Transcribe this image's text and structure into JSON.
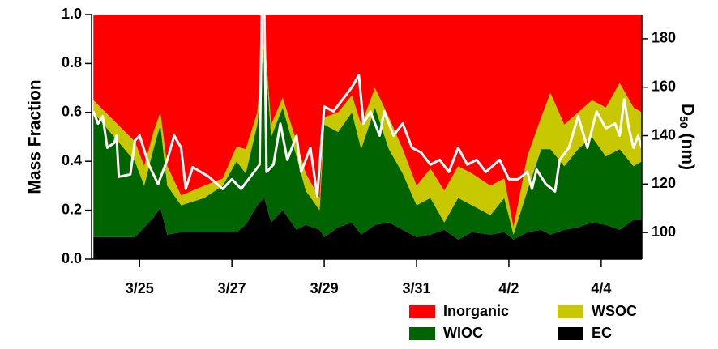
{
  "chart_data": {
    "type": "stacked-area",
    "y_label": "Mass Fraction",
    "y2_label": [
      "D",
      "50",
      " (nm)"
    ],
    "x": [
      0,
      0.9,
      1.1,
      1.3,
      1.45,
      1.6,
      1.9,
      2.4,
      2.8,
      3.1,
      3.3,
      3.55,
      3.7,
      3.85,
      4.1,
      4.4,
      4.6,
      4.9,
      5.0,
      5.3,
      5.6,
      5.8,
      6.1,
      6.4,
      6.7,
      7.0,
      7.3,
      7.6,
      7.9,
      8.2,
      8.6,
      8.9,
      9.1,
      9.4,
      9.7,
      9.9,
      10.2,
      10.5,
      10.8,
      11.1,
      11.4,
      11.7,
      11.88
    ],
    "xlim": [
      -0.04,
      11.88
    ],
    "xticks": [
      {
        "value": 1,
        "label": "3/25"
      },
      {
        "value": 3,
        "label": "3/27"
      },
      {
        "value": 5,
        "label": "3/29"
      },
      {
        "value": 7,
        "label": "3/31"
      },
      {
        "value": 9,
        "label": "4/2"
      },
      {
        "value": 11,
        "label": "4/4"
      }
    ],
    "ylim": [
      0,
      1
    ],
    "yticks": [
      {
        "value": 0,
        "label": "0.0"
      },
      0.2,
      0.4,
      0.6,
      0.8,
      {
        "value": 1,
        "label": "1.0"
      }
    ],
    "y2lim": [
      89,
      190
    ],
    "y2ticks": [
      100,
      120,
      140,
      160,
      180
    ],
    "series": [
      {
        "name": "EC",
        "color": "#000000",
        "values": [
          0.09,
          0.09,
          0.13,
          0.17,
          0.21,
          0.1,
          0.11,
          0.11,
          0.11,
          0.11,
          0.14,
          0.22,
          0.25,
          0.15,
          0.2,
          0.12,
          0.14,
          0.12,
          0.09,
          0.13,
          0.15,
          0.1,
          0.14,
          0.15,
          0.12,
          0.09,
          0.1,
          0.12,
          0.08,
          0.11,
          0.1,
          0.11,
          0.08,
          0.11,
          0.12,
          0.1,
          0.12,
          0.13,
          0.15,
          0.14,
          0.12,
          0.16,
          0.16
        ]
      },
      {
        "name": "WIOC",
        "color": "#006400",
        "values": [
          0.51,
          0.31,
          0.17,
          0.28,
          0.34,
          0.2,
          0.11,
          0.14,
          0.19,
          0.29,
          0.21,
          0.33,
          0.65,
          0.35,
          0.42,
          0.3,
          0.14,
          0.08,
          0.46,
          0.39,
          0.45,
          0.35,
          0.48,
          0.3,
          0.23,
          0.13,
          0.15,
          0.03,
          0.17,
          0.11,
          0.08,
          0.14,
          0.02,
          0.17,
          0.33,
          0.35,
          0.26,
          0.32,
          0.35,
          0.28,
          0.33,
          0.22,
          0.24
        ]
      },
      {
        "name": "WSOC",
        "color": "#c8c800",
        "values": [
          0.05,
          0.08,
          0.08,
          0.07,
          0.05,
          0.08,
          0.04,
          0.05,
          0.03,
          0.06,
          0.1,
          0.05,
          0.03,
          0.05,
          0.04,
          0.06,
          0.07,
          0.05,
          0.03,
          0.08,
          0.07,
          0.1,
          0.08,
          0.13,
          0.1,
          0.08,
          0.12,
          0.13,
          0.13,
          0.13,
          0.12,
          0.08,
          0.03,
          0.14,
          0.13,
          0.23,
          0.17,
          0.15,
          0.15,
          0.2,
          0.27,
          0.24,
          0.2
        ]
      },
      {
        "name": "Inorganic",
        "color": "#ff0000",
        "values": [
          0.35,
          0.52,
          0.62,
          0.48,
          0.4,
          0.62,
          0.74,
          0.7,
          0.67,
          0.54,
          0.55,
          0.4,
          0.07,
          0.45,
          0.34,
          0.52,
          0.65,
          0.75,
          0.42,
          0.4,
          0.33,
          0.45,
          0.3,
          0.42,
          0.55,
          0.7,
          0.63,
          0.72,
          0.62,
          0.65,
          0.7,
          0.67,
          0.87,
          0.58,
          0.42,
          0.32,
          0.45,
          0.4,
          0.35,
          0.38,
          0.28,
          0.38,
          0.4
        ]
      }
    ],
    "line": {
      "type": "line",
      "axis": "y2",
      "color": "#ffffff",
      "x": [
        0,
        0.1,
        0.2,
        0.3,
        0.45,
        0.5,
        0.55,
        0.8,
        0.9,
        1.0,
        1.2,
        1.4,
        1.6,
        1.75,
        1.9,
        2.0,
        2.15,
        2.5,
        2.8,
        3.0,
        3.2,
        3.6,
        3.65,
        3.7,
        3.75,
        3.9,
        4.05,
        4.2,
        4.4,
        4.5,
        4.7,
        4.85,
        5.0,
        5.2,
        5.4,
        5.6,
        5.75,
        5.85,
        6.0,
        6.2,
        6.3,
        6.5,
        6.7,
        6.9,
        7.1,
        7.3,
        7.5,
        7.7,
        7.9,
        8.1,
        8.3,
        8.5,
        8.8,
        9.0,
        9.2,
        9.4,
        9.5,
        9.6,
        9.8,
        10.0,
        10.1,
        10.3,
        10.5,
        10.7,
        10.9,
        11.1,
        11.3,
        11.4,
        11.5,
        11.6,
        11.7,
        11.8,
        11.88
      ],
      "values": [
        150,
        145,
        148,
        135,
        137,
        140,
        123,
        124,
        138,
        140,
        128,
        120,
        130,
        140,
        135,
        118,
        127,
        123,
        118,
        122,
        118,
        128,
        195,
        195,
        125,
        128,
        145,
        130,
        140,
        125,
        135,
        115,
        152,
        150,
        155,
        160,
        165,
        145,
        150,
        140,
        150,
        140,
        145,
        135,
        133,
        128,
        130,
        125,
        135,
        128,
        130,
        125,
        130,
        122,
        122,
        125,
        118,
        126,
        120,
        117,
        130,
        135,
        148,
        135,
        150,
        143,
        145,
        140,
        155,
        143,
        135,
        140,
        135
      ]
    }
  }
}
